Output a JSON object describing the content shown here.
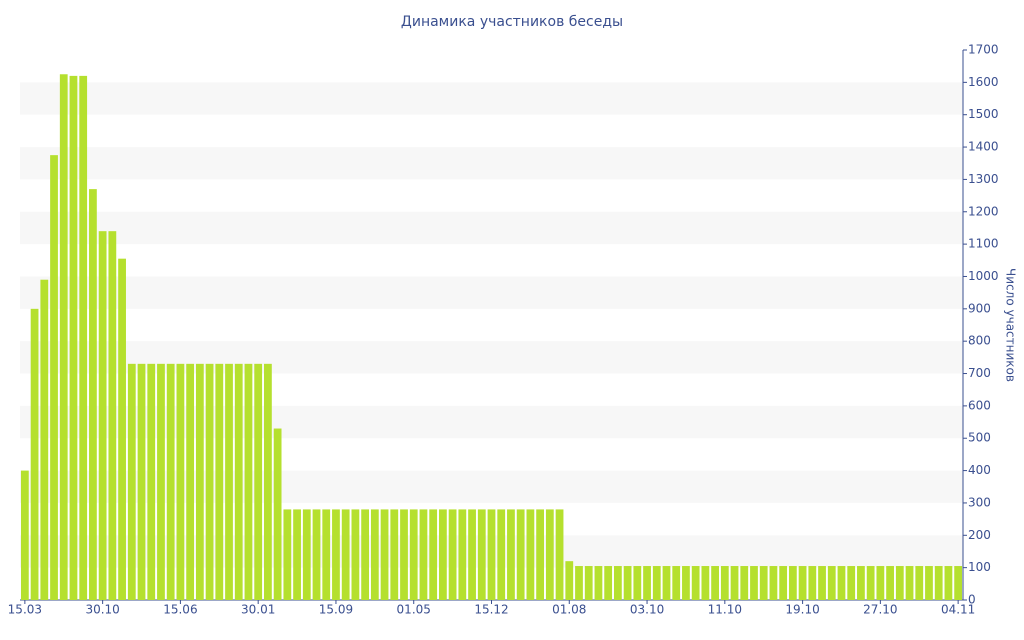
{
  "chart_data": {
    "type": "bar",
    "title": "Динамика участников беседы",
    "y_label": "Число участников",
    "categories": [
      "15.03",
      null,
      null,
      null,
      null,
      null,
      null,
      null,
      "30.10",
      null,
      null,
      null,
      null,
      null,
      null,
      null,
      "15.06",
      null,
      null,
      null,
      null,
      null,
      null,
      null,
      "30.01",
      null,
      null,
      null,
      null,
      null,
      null,
      null,
      "15.09",
      null,
      null,
      null,
      null,
      null,
      null,
      null,
      "01.05",
      null,
      null,
      null,
      null,
      null,
      null,
      null,
      "15.12",
      null,
      null,
      null,
      null,
      null,
      null,
      null,
      "01.08",
      null,
      null,
      null,
      null,
      null,
      null,
      null,
      "03.10",
      null,
      null,
      null,
      null,
      null,
      null,
      null,
      "11.10",
      null,
      null,
      null,
      null,
      null,
      null,
      null,
      "19.10",
      null,
      null,
      null,
      null,
      null,
      null,
      null,
      "27.10",
      null,
      null,
      null,
      null,
      null,
      null,
      null,
      "04.11"
    ],
    "values": [
      400,
      900,
      990,
      1375,
      1625,
      1620,
      1620,
      1270,
      1140,
      1140,
      1055,
      730,
      730,
      730,
      730,
      730,
      730,
      730,
      730,
      730,
      730,
      730,
      730,
      730,
      730,
      730,
      530,
      280,
      280,
      280,
      280,
      280,
      280,
      280,
      280,
      280,
      280,
      280,
      280,
      280,
      280,
      280,
      280,
      280,
      280,
      280,
      280,
      280,
      280,
      280,
      280,
      280,
      280,
      280,
      280,
      280,
      120,
      105,
      105,
      105,
      105,
      105,
      105,
      105,
      105,
      105,
      105,
      105,
      105,
      105,
      105,
      105,
      105,
      105,
      105,
      105,
      105,
      105,
      105,
      105,
      105,
      105,
      105,
      105,
      105,
      105,
      105,
      105,
      105,
      105,
      105,
      105,
      105,
      105,
      105,
      105,
      105
    ],
    "color": "#b5e02e",
    "ylim": [
      0,
      1700
    ],
    "yticks": [
      0,
      100,
      200,
      300,
      400,
      500,
      600,
      700,
      800,
      900,
      1000,
      1100,
      1200,
      1300,
      1400,
      1500,
      1600,
      1700
    ],
    "grid": "bands",
    "y_axis_side": "right"
  }
}
